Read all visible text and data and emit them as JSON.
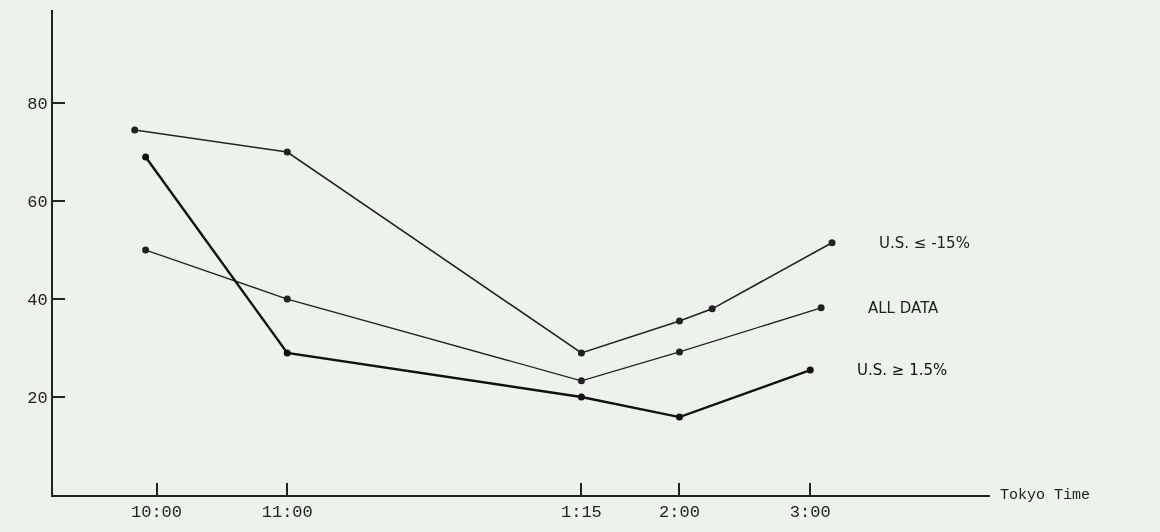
{
  "chart_data": {
    "type": "line",
    "xlabel": "Tokyo Time",
    "categories": [
      null,
      null,
      null,
      null,
      null,
      null,
      null,
      null,
      null,
      "10:00",
      null,
      null,
      null,
      null,
      null,
      null,
      null,
      null,
      null,
      null,
      null,
      "11:00",
      null,
      null,
      null,
      null,
      null,
      null,
      null,
      null,
      null,
      null,
      null,
      null,
      null,
      null,
      null,
      null,
      null,
      null,
      null,
      null,
      null,
      null,
      null,
      null,
      null,
      null,
      "1:15",
      null,
      null,
      null,
      null,
      null,
      null,
      null,
      null,
      "2:00",
      null,
      null,
      null,
      null,
      null,
      null,
      null,
      null,
      null,
      null,
      null,
      "3:00",
      null,
      null,
      null,
      null,
      null,
      null,
      null,
      null,
      null,
      null,
      null,
      null,
      null,
      null,
      null,
      null
    ],
    "ylim": [
      0,
      99
    ],
    "yticks": [
      20,
      40,
      60,
      80
    ],
    "legend": false,
    "marker": "circle",
    "line_style": "solid",
    "series": [
      {
        "name": "U.S. ≤ -15%",
        "color": "#222222",
        "values": [
          null,
          null,
          null,
          null,
          null,
          null,
          null,
          74.5,
          null,
          null,
          null,
          null,
          null,
          null,
          null,
          null,
          null,
          null,
          null,
          null,
          null,
          70,
          null,
          null,
          null,
          null,
          null,
          null,
          null,
          null,
          null,
          null,
          null,
          null,
          null,
          null,
          null,
          null,
          null,
          null,
          null,
          null,
          null,
          null,
          null,
          null,
          null,
          null,
          29,
          null,
          null,
          null,
          null,
          null,
          null,
          null,
          null,
          35.5,
          null,
          null,
          38,
          null,
          null,
          null,
          null,
          null,
          null,
          null,
          null,
          null,
          null,
          51.5,
          null,
          null,
          null,
          null,
          null,
          null,
          null,
          null,
          null,
          null,
          null,
          null,
          null,
          null
        ]
      },
      {
        "name": "ALL DATA",
        "color": "#222222",
        "values": [
          null,
          null,
          null,
          null,
          null,
          null,
          null,
          null,
          50,
          null,
          null,
          null,
          null,
          null,
          null,
          null,
          null,
          null,
          null,
          null,
          null,
          40,
          null,
          null,
          null,
          null,
          null,
          null,
          null,
          null,
          null,
          null,
          null,
          null,
          null,
          null,
          null,
          null,
          null,
          null,
          null,
          null,
          null,
          null,
          null,
          null,
          null,
          null,
          23.3,
          null,
          null,
          null,
          null,
          null,
          null,
          null,
          null,
          29.2,
          null,
          null,
          null,
          null,
          null,
          null,
          null,
          null,
          null,
          null,
          null,
          null,
          38.2,
          null,
          null,
          null,
          null,
          null,
          null,
          null,
          null,
          null,
          null,
          null,
          null,
          null,
          null,
          null
        ]
      },
      {
        "name": "U.S. ≥ 1.5%",
        "color": "#111111",
        "values": [
          null,
          null,
          null,
          null,
          null,
          null,
          null,
          null,
          69,
          null,
          null,
          null,
          null,
          null,
          null,
          null,
          null,
          null,
          null,
          null,
          null,
          29,
          null,
          null,
          null,
          null,
          null,
          null,
          null,
          null,
          null,
          null,
          null,
          null,
          null,
          null,
          null,
          null,
          null,
          null,
          null,
          null,
          null,
          null,
          null,
          null,
          null,
          null,
          20,
          null,
          null,
          null,
          null,
          null,
          null,
          null,
          null,
          15.9,
          null,
          null,
          null,
          null,
          null,
          null,
          null,
          null,
          null,
          null,
          null,
          25.5,
          null,
          null,
          null,
          null,
          null,
          null,
          null,
          null,
          null,
          null,
          null,
          null,
          null,
          null,
          null,
          null
        ]
      }
    ]
  }
}
